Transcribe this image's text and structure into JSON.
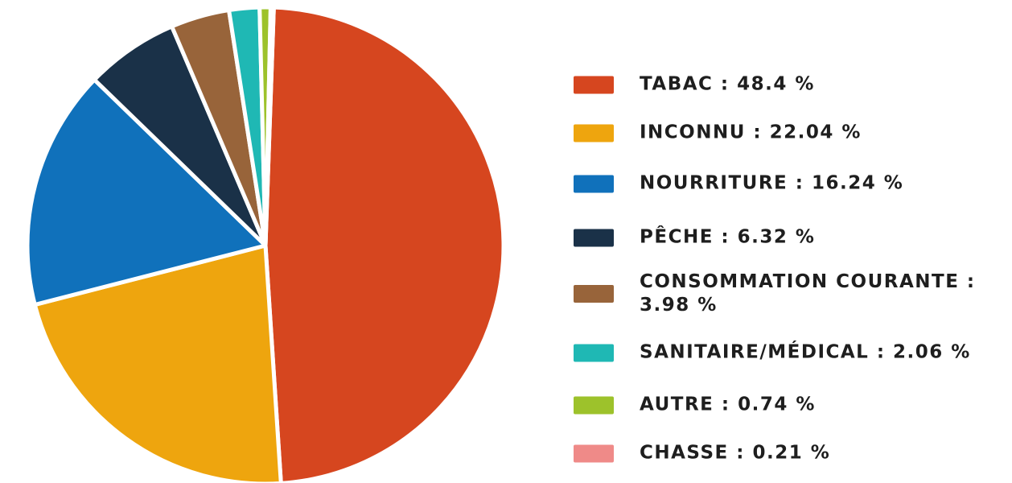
{
  "chart_data": {
    "type": "pie",
    "categories": [
      "TABAC : 48.4 %",
      "INCONNU : 22.04 %",
      "NOURRITURE : 16.24 %",
      "PÊCHE : 6.32 %",
      "CONSOMMATION COURANTE : 3.98 %",
      "SANITAIRE/MÉDICAL : 2.06 %",
      "AUTRE : 0.74 %",
      "CHASSE : 0.21 %"
    ],
    "values": [
      48.4,
      22.04,
      16.24,
      6.32,
      3.98,
      2.06,
      0.74,
      0.21
    ],
    "colors": [
      "#d6461f",
      "#eea50e",
      "#1071bb",
      "#1a3148",
      "#98643a",
      "#1fb8b4",
      "#9dc22b",
      "#ef8a88"
    ],
    "legend": "right"
  }
}
